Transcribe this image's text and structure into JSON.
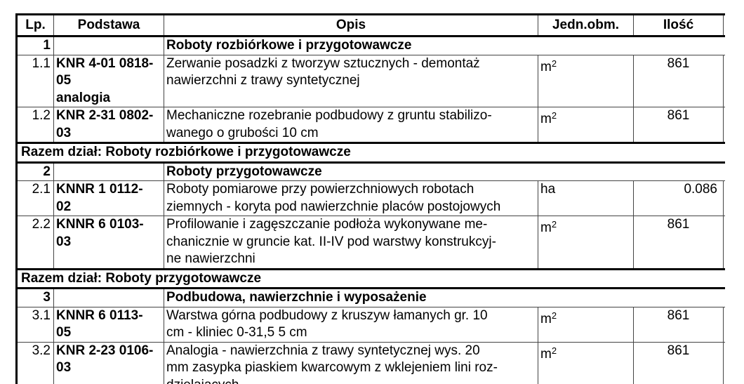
{
  "header": {
    "lp": "Lp.",
    "podstawa": "Podstawa",
    "opis": "Opis",
    "jedn": "Jedn.obm.",
    "ilosc": "Ilość"
  },
  "sections": [
    {
      "lp": "1",
      "title": "Roboty rozbiórkowe i przygotowawcze",
      "items": [
        {
          "lp": "1.1",
          "podstawa": [
            "KNR 4-01 0818-",
            "05",
            "analogia"
          ],
          "opis": [
            "Zerwanie posadzki z tworzyw sztucznych - demontaż",
            "nawierzchni z trawy syntetycznej"
          ],
          "unit": "m",
          "unit_sup": "2",
          "qty": "861"
        },
        {
          "lp": "1.2",
          "podstawa": [
            "KNR 2-31 0802-",
            "03"
          ],
          "opis": [
            "Mechaniczne rozebranie podbudowy z gruntu stabilizo-",
            "wanego o grubości 10 cm"
          ],
          "unit": "m",
          "unit_sup": "2",
          "qty": "861"
        }
      ],
      "total": "Razem dział: Roboty rozbiórkowe i przygotowawcze"
    },
    {
      "lp": "2",
      "title": "Roboty przygotowawcze",
      "items": [
        {
          "lp": "2.1",
          "podstawa": [
            "KNNR 1 0112-",
            "02"
          ],
          "opis": [
            "Roboty pomiarowe przy powierzchniowych robotach",
            "ziemnych - koryta pod nawierzchnie placów postojowych"
          ],
          "unit": "ha",
          "unit_sup": "",
          "qty": "0.086"
        },
        {
          "lp": "2.2",
          "podstawa": [
            "KNNR 6 0103-",
            "03"
          ],
          "opis": [
            "Profilowanie i zagęszczanie podłoża wykonywane me-",
            "chanicznie w gruncie kat. II-IV pod warstwy konstrukcyj-",
            "ne nawierzchni"
          ],
          "unit": "m",
          "unit_sup": "2",
          "qty": "861"
        }
      ],
      "total": "Razem dział: Roboty przygotowawcze"
    },
    {
      "lp": "3",
      "title": "Podbudowa, nawierzchnie i wyposażenie",
      "items": [
        {
          "lp": "3.1",
          "podstawa": [
            "KNNR 6 0113-",
            "05"
          ],
          "opis": [
            "Warstwa górna podbudowy z kruszyw łamanych gr. 10",
            "cm - kliniec 0-31,5 5 cm"
          ],
          "unit": "m",
          "unit_sup": "2",
          "qty": "861"
        },
        {
          "lp": "3.2",
          "podstawa": [
            "KNR 2-23 0106-",
            "03"
          ],
          "opis": [
            "Analogia - nawierzchnia z trawy syntetycznej wys. 20",
            "mm zasypka piaskiem kwarcowym z wklejeniem lini roz-",
            "dzielających"
          ],
          "unit": "m",
          "unit_sup": "2",
          "qty": "861"
        }
      ]
    }
  ]
}
